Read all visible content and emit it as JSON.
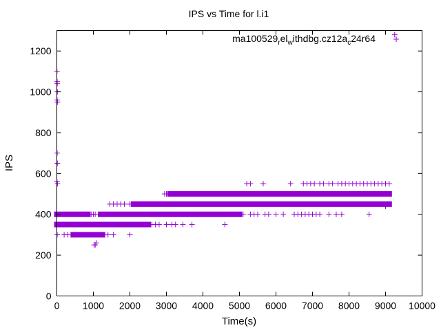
{
  "chart_data": {
    "type": "scatter",
    "title": "IPS vs Time for l.i1",
    "xlabel": "Time(s)",
    "ylabel": "IPS",
    "xlim": [
      0,
      10000
    ],
    "ylim": [
      0,
      1300
    ],
    "xticks": [
      0,
      1000,
      2000,
      3000,
      4000,
      5000,
      6000,
      7000,
      8000,
      9000,
      10000
    ],
    "yticks": [
      0,
      200,
      400,
      600,
      800,
      1000,
      1200
    ],
    "grid": false,
    "legend_position": "top-right",
    "marker": "+",
    "series": [
      {
        "name_parts": [
          "ma100529",
          "r",
          "el",
          "w",
          "ithdbg.cz12a",
          "c",
          "24r64"
        ],
        "color": "#9400d3",
        "bands": [
          {
            "y": 350,
            "x_start": 0,
            "x_end": 2500
          },
          {
            "y": 400,
            "x_start": 0,
            "x_end": 850
          },
          {
            "y": 400,
            "x_start": 1200,
            "x_end": 5000
          },
          {
            "y": 300,
            "x_start": 450,
            "x_end": 1250
          },
          {
            "y": 450,
            "x_start": 2100,
            "x_end": 9100
          },
          {
            "y": 500,
            "x_start": 3100,
            "x_end": 9100
          }
        ],
        "points": [
          [
            5,
            1100
          ],
          [
            10,
            1050
          ],
          [
            15,
            1000
          ],
          [
            20,
            950
          ],
          [
            8,
            960
          ],
          [
            12,
            1040
          ],
          [
            10,
            700
          ],
          [
            15,
            650
          ],
          [
            18,
            550
          ],
          [
            5,
            560
          ],
          [
            10,
            300
          ],
          [
            200,
            300
          ],
          [
            300,
            300
          ],
          [
            1020,
            250
          ],
          [
            1050,
            250
          ],
          [
            1080,
            260
          ],
          [
            1400,
            300
          ],
          [
            1550,
            300
          ],
          [
            2000,
            300
          ],
          [
            850,
            400
          ],
          [
            950,
            400
          ],
          [
            1000,
            400
          ],
          [
            1050,
            400
          ],
          [
            1450,
            450
          ],
          [
            1550,
            450
          ],
          [
            1650,
            450
          ],
          [
            1750,
            450
          ],
          [
            1850,
            450
          ],
          [
            2000,
            450
          ],
          [
            2600,
            350
          ],
          [
            2700,
            350
          ],
          [
            2800,
            350
          ],
          [
            3000,
            350
          ],
          [
            3150,
            350
          ],
          [
            3250,
            350
          ],
          [
            3450,
            350
          ],
          [
            3700,
            350
          ],
          [
            4600,
            350
          ],
          [
            2950,
            500
          ],
          [
            3000,
            500
          ],
          [
            5100,
            400
          ],
          [
            5300,
            400
          ],
          [
            5400,
            400
          ],
          [
            5500,
            400
          ],
          [
            5700,
            400
          ],
          [
            5800,
            400
          ],
          [
            6000,
            400
          ],
          [
            6200,
            400
          ],
          [
            6500,
            400
          ],
          [
            6600,
            400
          ],
          [
            6700,
            400
          ],
          [
            6800,
            400
          ],
          [
            6900,
            400
          ],
          [
            7000,
            400
          ],
          [
            7100,
            400
          ],
          [
            7200,
            400
          ],
          [
            7450,
            400
          ],
          [
            7650,
            400
          ],
          [
            7800,
            400
          ],
          [
            8550,
            400
          ],
          [
            5200,
            550
          ],
          [
            5300,
            550
          ],
          [
            5650,
            550
          ],
          [
            6400,
            550
          ],
          [
            6750,
            550
          ],
          [
            6850,
            550
          ],
          [
            6950,
            550
          ],
          [
            7050,
            550
          ],
          [
            7200,
            550
          ],
          [
            7300,
            550
          ],
          [
            7450,
            550
          ],
          [
            7550,
            550
          ],
          [
            7700,
            550
          ],
          [
            7800,
            550
          ],
          [
            7900,
            550
          ],
          [
            8000,
            550
          ],
          [
            8100,
            550
          ],
          [
            8200,
            550
          ],
          [
            8300,
            550
          ],
          [
            8400,
            550
          ],
          [
            8500,
            550
          ],
          [
            8600,
            550
          ],
          [
            8700,
            550
          ],
          [
            8800,
            550
          ],
          [
            8900,
            550
          ],
          [
            9000,
            550
          ],
          [
            9100,
            550
          ],
          [
            9000,
            440
          ],
          [
            9250,
            1280
          ]
        ]
      }
    ]
  }
}
